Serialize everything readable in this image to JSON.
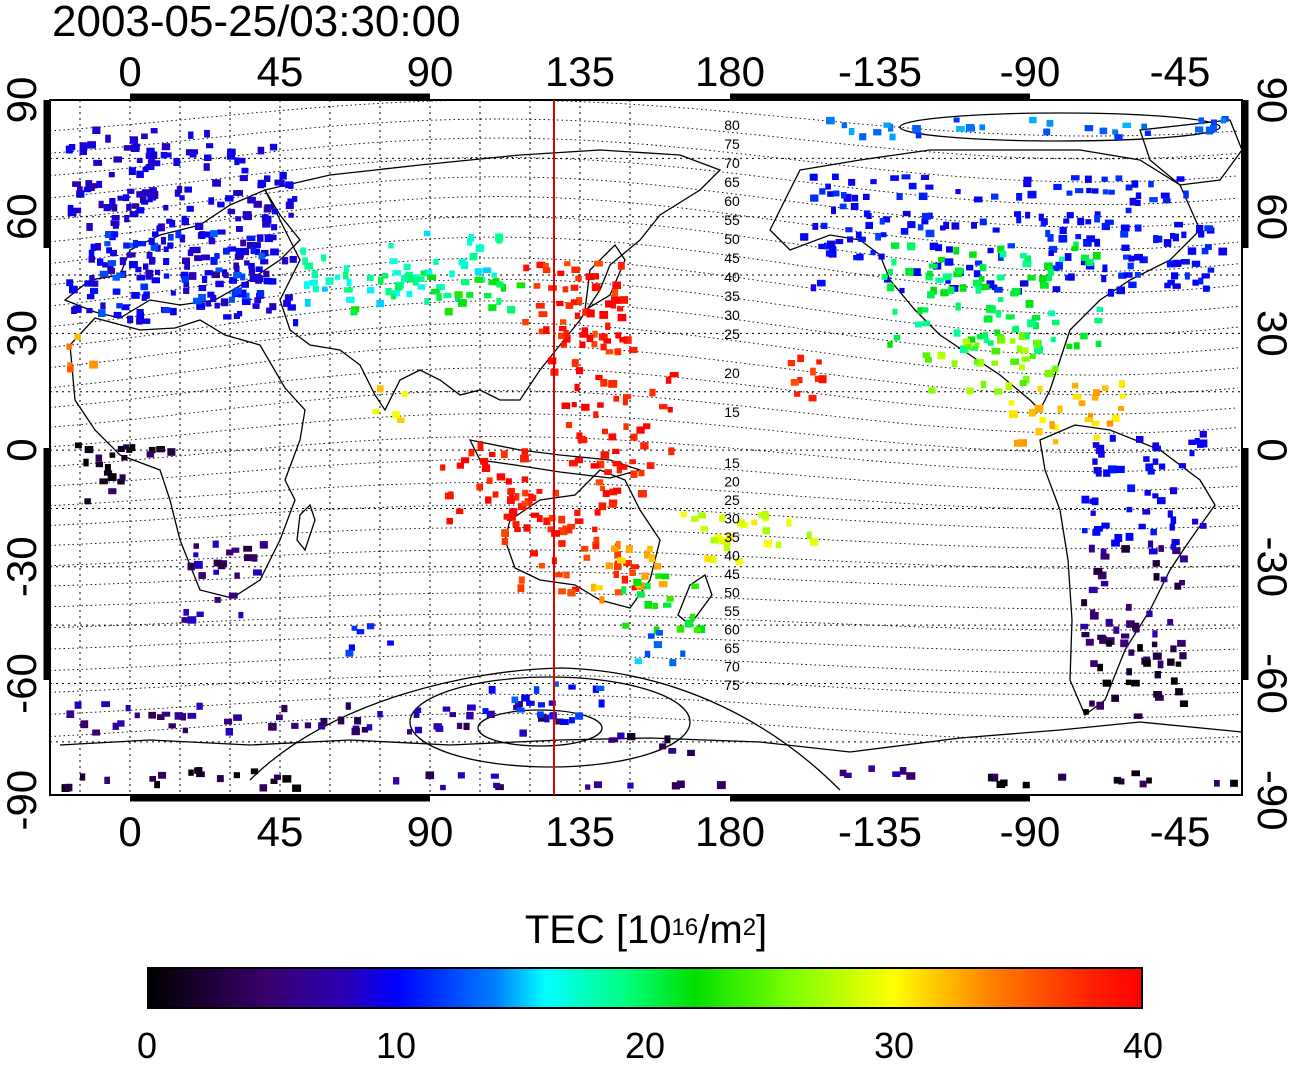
{
  "timestamp": "2003-05-25/03:30:00",
  "map": {
    "lon_ticks_top": [
      "0",
      "45",
      "90",
      "135",
      "180",
      "-135",
      "-90",
      "-45"
    ],
    "lon_ticks_bottom": [
      "0",
      "45",
      "90",
      "135",
      "180",
      "-135",
      "-90",
      "-45"
    ],
    "lat_ticks_left": [
      "90",
      "60",
      "30",
      "0",
      "-30",
      "-60",
      "-90"
    ],
    "lat_ticks_right": [
      "90",
      "60",
      "30",
      "0",
      "-30",
      "-60",
      "-90"
    ],
    "mlat_labels_north": [
      "80",
      "75",
      "70",
      "65",
      "60",
      "55",
      "50",
      "45",
      "40",
      "35",
      "30",
      "25",
      "20",
      "15"
    ],
    "mlat_labels_south": [
      "15",
      "20",
      "25",
      "30",
      "35",
      "40",
      "45",
      "50",
      "55",
      "60",
      "65",
      "70",
      "75"
    ],
    "meridian_marker_color": "#e00000"
  },
  "colorbar": {
    "title_main": "TEC  [10",
    "title_exp": "16",
    "title_unit": "/m",
    "title_unit_exp": "2",
    "title_close": "]",
    "ticks": [
      "0",
      "10",
      "20",
      "30",
      "40"
    ],
    "range": [
      0,
      40
    ]
  }
}
